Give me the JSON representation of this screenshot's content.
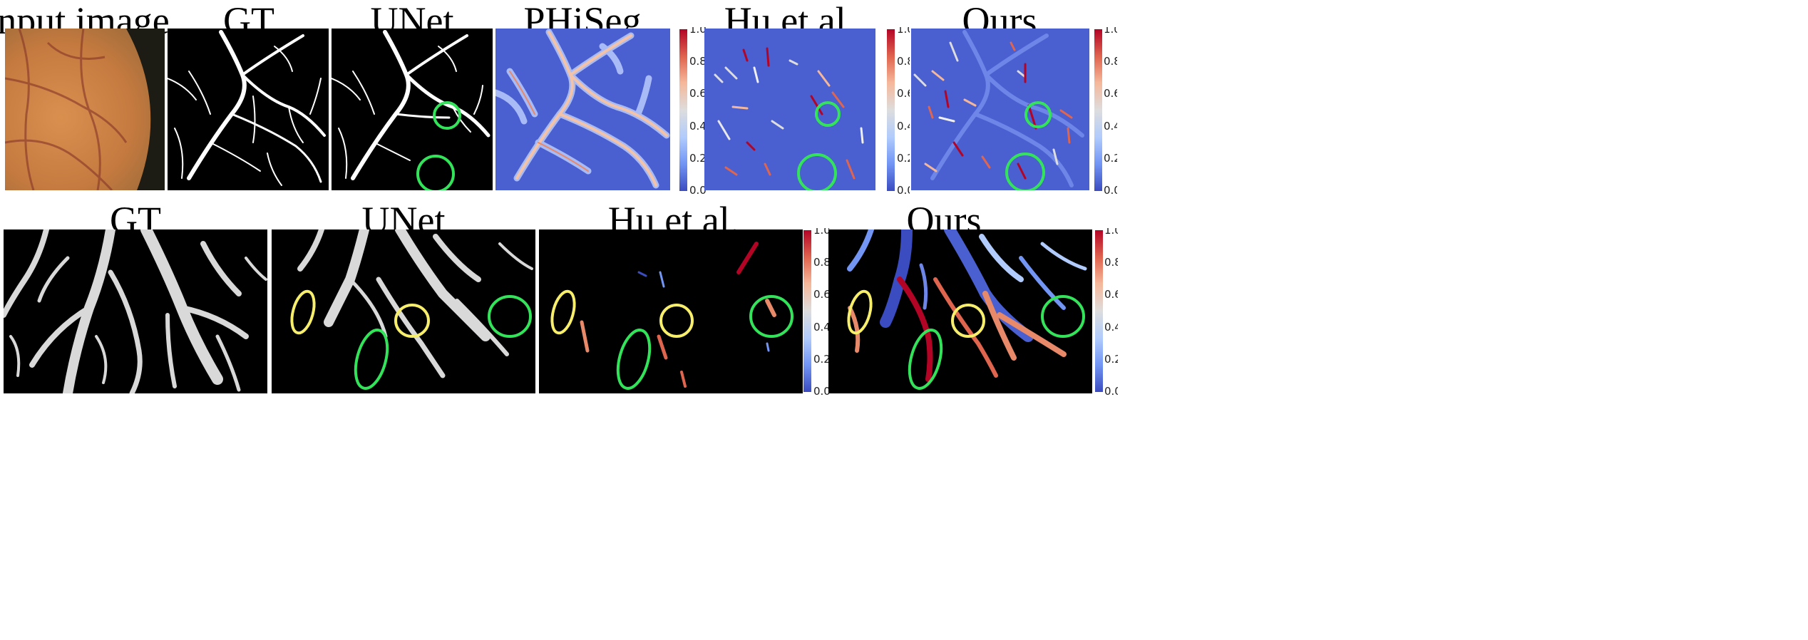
{
  "top_row": {
    "titles": [
      "Input image",
      "GT",
      "UNet",
      "PHiSeg",
      "Hu et al.",
      "Ours"
    ]
  },
  "bottom_row": {
    "titles": [
      "GT",
      "UNet",
      "Hu et al.",
      "Ours"
    ]
  },
  "colorbar": {
    "ticks": [
      "1.0",
      "0.8",
      "0.6",
      "0.4",
      "0.2",
      "0.0"
    ],
    "colors": [
      "#3b4cc0",
      "#7396f5",
      "#b0cbfc",
      "#dddddd",
      "#f5b79a",
      "#e0654f",
      "#b40426"
    ]
  },
  "annotation_colors": {
    "green": "#33e35a",
    "yellow": "#f7ef6b"
  }
}
